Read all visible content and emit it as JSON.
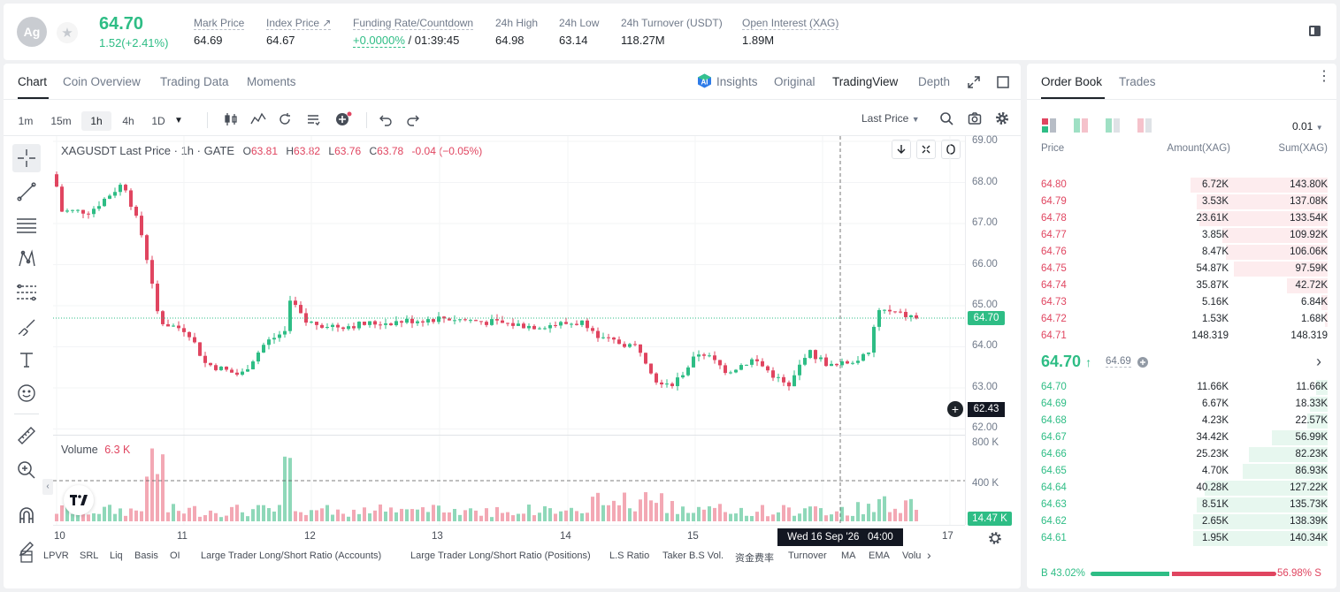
{
  "header": {
    "coin_badge": "Ag",
    "last_price": "64.70",
    "change": "1.52(+2.41%)",
    "stats": [
      {
        "label": "Mark Price",
        "value": "64.69"
      },
      {
        "label": "Index Price ↗",
        "value": "64.67"
      },
      {
        "label": "Funding Rate/Countdown",
        "value_rate": "+0.0000%",
        "value_countdown": "/ 01:39:45"
      },
      {
        "label": "24h High",
        "value": "64.98"
      },
      {
        "label": "24h Low",
        "value": "63.14"
      },
      {
        "label": "24h Turnover (USDT)",
        "value": "118.27M"
      },
      {
        "label": "Open Interest (XAG)",
        "value": "1.89M"
      }
    ]
  },
  "chart_tabs": [
    "Chart",
    "Coin Overview",
    "Trading Data",
    "Moments"
  ],
  "view_tabs": {
    "insights": "Insights",
    "original": "Original",
    "tradingview": "TradingView",
    "depth": "Depth"
  },
  "timeframes": [
    "1m",
    "15m",
    "1h",
    "4h",
    "1D"
  ],
  "active_timeframe": "1h",
  "last_price_select": "Last Price",
  "legend": {
    "symbol": "XAGUSDT Last Price · 1h · GATE",
    "o_label": "O",
    "o": "63.81",
    "h_label": "H",
    "h": "63.82",
    "l_label": "L",
    "l": "63.76",
    "c_label": "C",
    "c": "63.78",
    "change": "-0.04 (−0.05%)"
  },
  "price_axis": [
    "69.00",
    "68.00",
    "67.00",
    "66.00",
    "65.00",
    "64.00",
    "63.00",
    "62.00"
  ],
  "price_tag": "64.70",
  "crosshair_tag": "62.43",
  "volume_label": "Volume",
  "volume_value": "6.3 K",
  "volume_axis": [
    "800 K",
    "400 K"
  ],
  "volume_tag": "14.47 K",
  "time_axis": [
    "10",
    "11",
    "12",
    "13",
    "14",
    "15",
    "17"
  ],
  "crosshair_time": "Wed 16 Sep '26",
  "crosshair_hour": "04:00",
  "bottom_indicators": [
    "LPVR",
    "SRL",
    "Liq",
    "Basis",
    "OI",
    "Large Trader Long/Short Ratio (Accounts)",
    "Large Trader Long/Short Ratio (Positions)",
    "L.S Ratio",
    "Taker B.S Vol.",
    "资金费率",
    "Turnover",
    "MA",
    "EMA",
    "Volu"
  ],
  "colors": {
    "up": "#2ebd85",
    "down": "#e04560",
    "up_bar": "#8fd8b9",
    "down_bar": "#f3a8b4"
  },
  "orderbook": {
    "tabs": [
      "Order Book",
      "Trades"
    ],
    "precision": "0.01",
    "headers": [
      "Price",
      "Amount(XAG)",
      "Sum(XAG)"
    ],
    "asks": [
      {
        "price": "64.80",
        "amount": "6.72K",
        "sum": "143.80K",
        "depth": 0.47
      },
      {
        "price": "64.79",
        "amount": "3.53K",
        "sum": "137.08K",
        "depth": 0.45
      },
      {
        "price": "64.78",
        "amount": "23.61K",
        "sum": "133.54K",
        "depth": 0.44
      },
      {
        "price": "64.77",
        "amount": "3.85K",
        "sum": "109.92K",
        "depth": 0.36
      },
      {
        "price": "64.76",
        "amount": "8.47K",
        "sum": "106.06K",
        "depth": 0.35
      },
      {
        "price": "64.75",
        "amount": "54.87K",
        "sum": "97.59K",
        "depth": 0.32
      },
      {
        "price": "64.74",
        "amount": "35.87K",
        "sum": "42.72K",
        "depth": 0.14
      },
      {
        "price": "64.73",
        "amount": "5.16K",
        "sum": "6.84K",
        "depth": 0.02
      },
      {
        "price": "64.72",
        "amount": "1.53K",
        "sum": "1.68K",
        "depth": 0.01
      },
      {
        "price": "64.71",
        "amount": "148.319",
        "sum": "148.319",
        "depth": 0.0
      }
    ],
    "mid_price": "64.70",
    "mid_mark": "64.69",
    "bids": [
      {
        "price": "64.70",
        "amount": "11.66K",
        "sum": "11.66K",
        "depth": 0.04
      },
      {
        "price": "64.69",
        "amount": "6.67K",
        "sum": "18.33K",
        "depth": 0.06
      },
      {
        "price": "64.68",
        "amount": "4.23K",
        "sum": "22.57K",
        "depth": 0.07
      },
      {
        "price": "64.67",
        "amount": "34.42K",
        "sum": "56.99K",
        "depth": 0.19
      },
      {
        "price": "64.66",
        "amount": "25.23K",
        "sum": "82.23K",
        "depth": 0.27
      },
      {
        "price": "64.65",
        "amount": "4.70K",
        "sum": "86.93K",
        "depth": 0.29
      },
      {
        "price": "64.64",
        "amount": "40.28K",
        "sum": "127.22K",
        "depth": 0.42
      },
      {
        "price": "64.63",
        "amount": "8.51K",
        "sum": "135.73K",
        "depth": 0.45
      },
      {
        "price": "64.62",
        "amount": "2.65K",
        "sum": "138.39K",
        "depth": 0.46
      },
      {
        "price": "64.61",
        "amount": "1.95K",
        "sum": "140.34K",
        "depth": 0.46
      }
    ],
    "ratio_buy": "B 43.02%",
    "ratio_sell": "56.98% S",
    "buy_fraction": 0.4302
  }
}
